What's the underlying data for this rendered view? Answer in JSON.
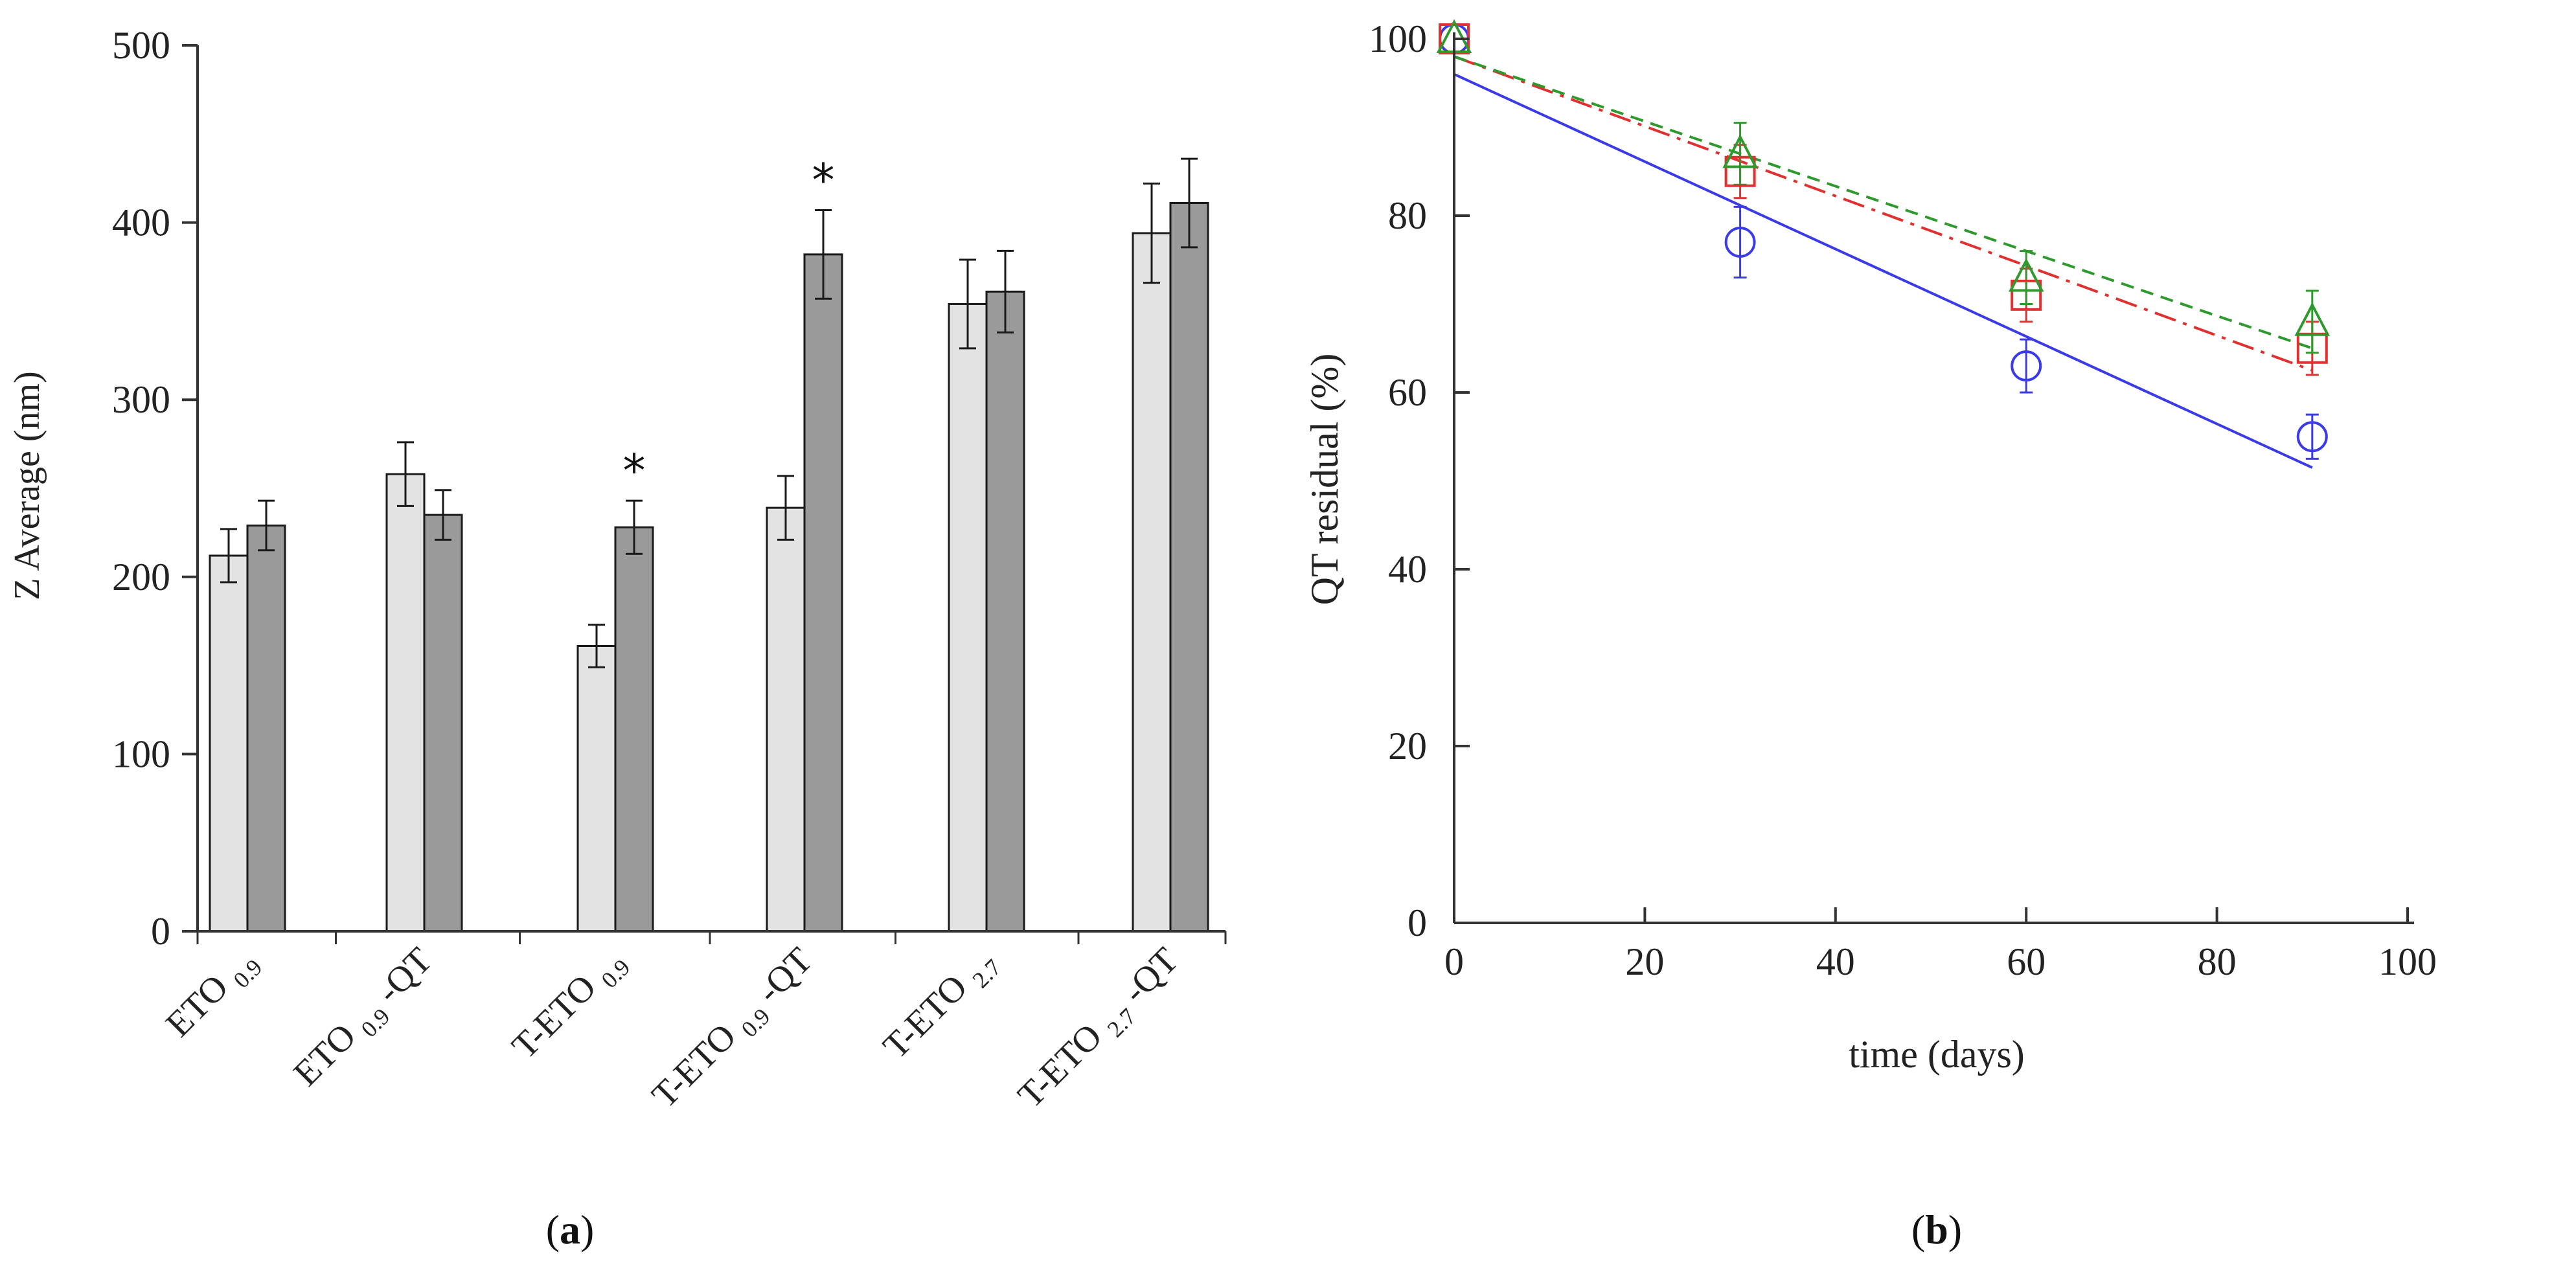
{
  "chart_data": [
    {
      "type": "bar",
      "panel_label": "a",
      "ylabel": "Z Average (nm)",
      "ylim": [
        0,
        500
      ],
      "yticks": [
        0,
        100,
        200,
        300,
        400,
        500
      ],
      "categories": [
        {
          "main": "ETO",
          "sub": "0.9",
          "suffix": ""
        },
        {
          "main": "ETO",
          "sub": "0.9",
          "suffix": "-QT"
        },
        {
          "main": "T-ETO",
          "sub": "0.9",
          "suffix": ""
        },
        {
          "main": "T-ETO",
          "sub": "0.9",
          "suffix": "-QT"
        },
        {
          "main": "T-ETO",
          "sub": "2.7",
          "suffix": ""
        },
        {
          "main": "T-ETO",
          "sub": "2.7",
          "suffix": "-QT"
        }
      ],
      "series": [
        {
          "name": "light",
          "color": "#e3e3e3",
          "values": [
            212,
            258,
            161,
            239,
            354,
            394
          ],
          "errors": [
            15,
            18,
            12,
            18,
            25,
            28
          ]
        },
        {
          "name": "dark",
          "color": "#9a9a9a",
          "values": [
            229,
            235,
            228,
            382,
            361,
            411
          ],
          "errors": [
            14,
            14,
            15,
            25,
            23,
            25
          ]
        }
      ],
      "significance": [
        {
          "category_index": 2,
          "series_index": 1,
          "label": "*"
        },
        {
          "category_index": 3,
          "series_index": 1,
          "label": "*"
        }
      ]
    },
    {
      "type": "scatter",
      "panel_label": "b",
      "xlabel": "time (days)",
      "ylabel": "QT residual (%)",
      "xlim": [
        0,
        100
      ],
      "ylim": [
        0,
        100
      ],
      "xticks": [
        0,
        20,
        40,
        60,
        80,
        100
      ],
      "yticks": [
        0,
        20,
        40,
        60,
        80,
        100
      ],
      "series": [
        {
          "name": "circle",
          "marker": "circle",
          "color": "#3a3ae8",
          "line_style": "solid",
          "x": [
            0,
            30,
            60,
            90
          ],
          "y": [
            100,
            77,
            63,
            55
          ],
          "errors": [
            0,
            4,
            3,
            2.5
          ],
          "fit": {
            "x": [
              0,
              90
            ],
            "y": [
              96,
              51.5
            ]
          }
        },
        {
          "name": "square",
          "marker": "square",
          "color": "#e03030",
          "line_style": "dashdot",
          "x": [
            0,
            30,
            60,
            90
          ],
          "y": [
            100,
            85,
            71,
            65
          ],
          "errors": [
            0,
            3,
            3,
            3
          ],
          "fit": {
            "x": [
              0,
              90
            ],
            "y": [
              98,
              62.5
            ]
          }
        },
        {
          "name": "triangle",
          "marker": "triangle",
          "color": "#2e9a2e",
          "line_style": "dashed",
          "x": [
            0,
            30,
            60,
            90
          ],
          "y": [
            100,
            87,
            73,
            68
          ],
          "errors": [
            0,
            3.5,
            3,
            3.5
          ],
          "fit": {
            "x": [
              0,
              90
            ],
            "y": [
              98,
              65
            ]
          }
        }
      ]
    }
  ]
}
